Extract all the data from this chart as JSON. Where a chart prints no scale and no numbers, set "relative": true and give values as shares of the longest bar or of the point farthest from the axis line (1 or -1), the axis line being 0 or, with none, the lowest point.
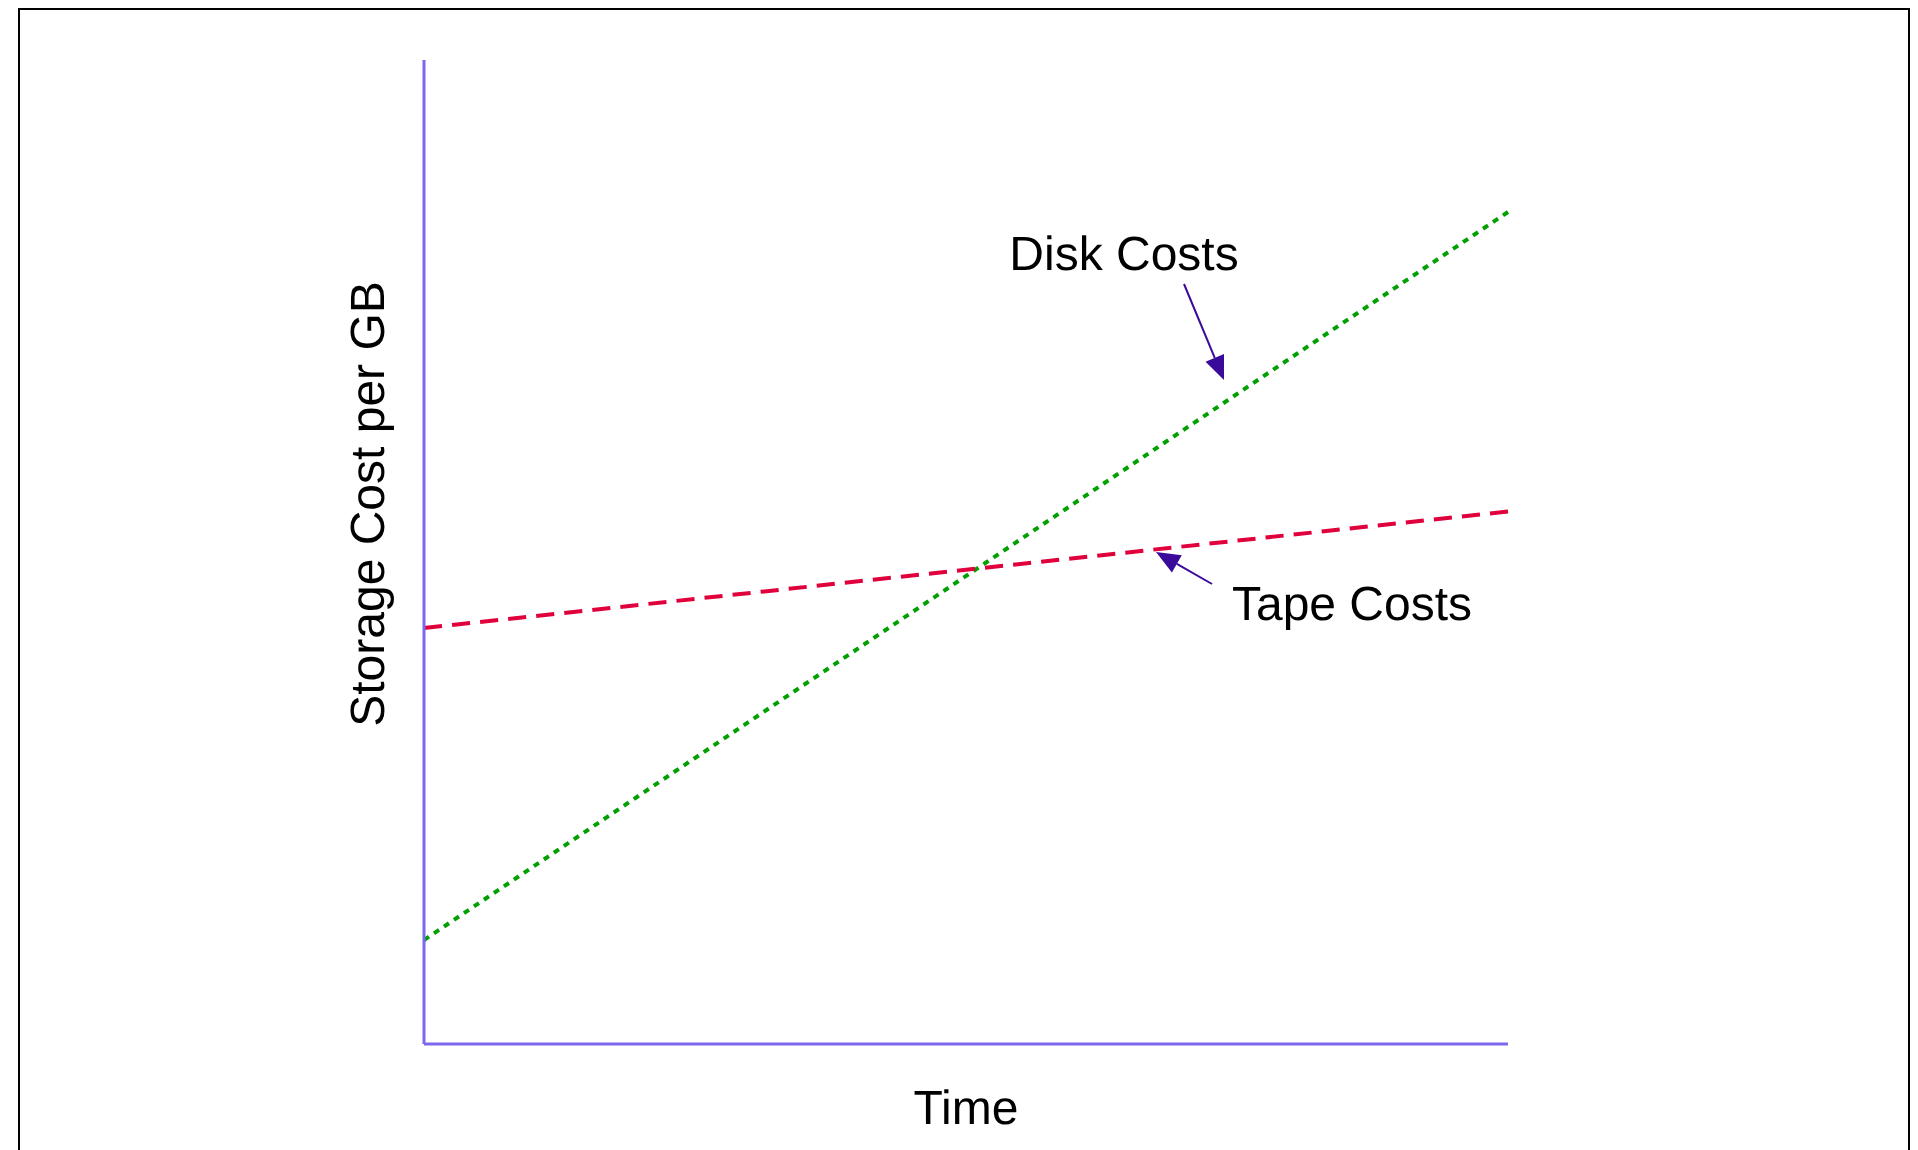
{
  "chart_data": {
    "type": "line",
    "relative": true,
    "xlabel": "Time",
    "ylabel": "Storage Cost per GB",
    "categories": [
      null,
      null
    ],
    "series": [
      {
        "name": "Disk Costs",
        "color": "#00a000",
        "line_style": "dotted",
        "values": [
          0.125,
          1
        ]
      },
      {
        "name": "Tape Costs",
        "color": "#e0003c",
        "line_style": "dashed",
        "values": [
          0.5,
          0.64
        ]
      }
    ]
  }
}
